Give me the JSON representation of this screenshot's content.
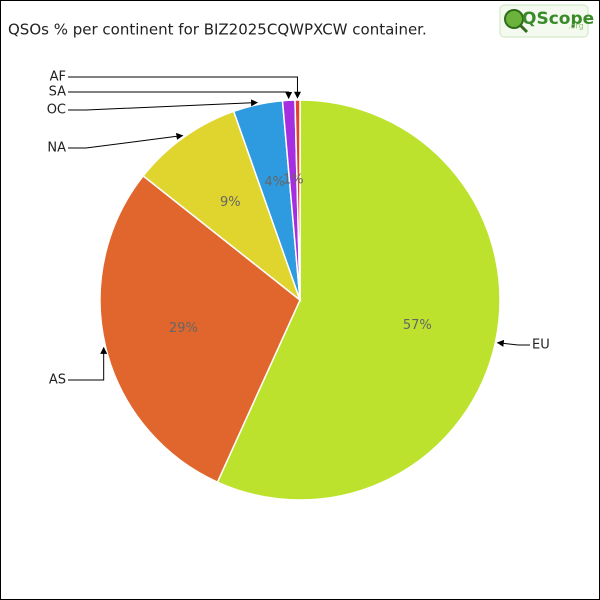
{
  "logo": {
    "text": "QScope",
    "suffix": ".org"
  },
  "chart_data": {
    "type": "pie",
    "title": "QSOs % per continent for BIZ2025CQWPXCW container.",
    "categories": [
      "EU",
      "AS",
      "NA",
      "OC",
      "SA",
      "AF"
    ],
    "values": [
      57,
      29,
      9,
      4,
      1,
      0.4
    ],
    "value_labels": [
      "57%",
      "29%",
      "9%",
      "4%",
      "1%",
      null
    ],
    "colors": [
      "#bde22e",
      "#e0662e",
      "#e0d52e",
      "#2e9be0",
      "#a52ee0",
      "#e0442e"
    ]
  }
}
